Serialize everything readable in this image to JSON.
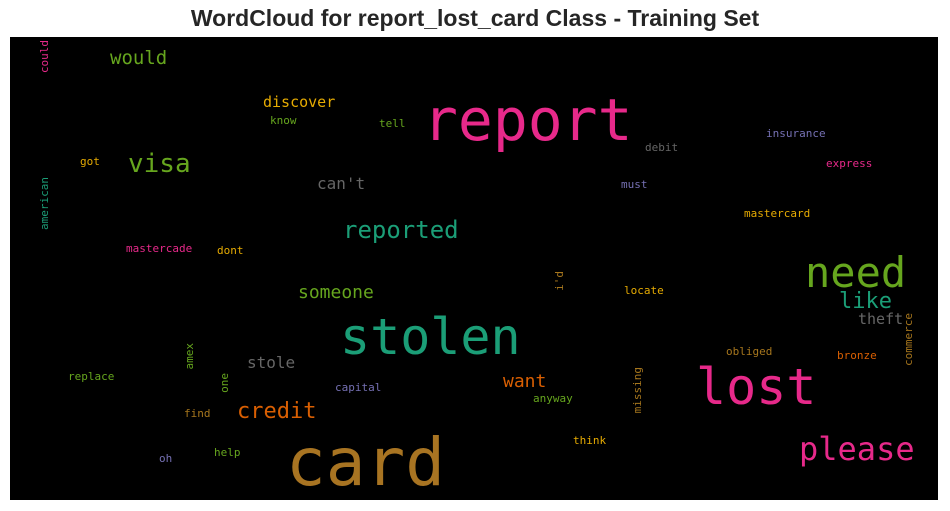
{
  "chart_data": {
    "type": "wordcloud",
    "title": "WordCloud for report_lost_card Class - Training Set",
    "words": [
      {
        "text": "card",
        "color": "#a87422"
      },
      {
        "text": "report",
        "color": "#e7298a"
      },
      {
        "text": "stolen",
        "color": "#1b9e77"
      },
      {
        "text": "lost",
        "color": "#e7298a"
      },
      {
        "text": "need",
        "color": "#66a61e"
      },
      {
        "text": "please",
        "color": "#e7298a"
      },
      {
        "text": "visa",
        "color": "#66a61e"
      },
      {
        "text": "reported",
        "color": "#1b9e77"
      },
      {
        "text": "credit",
        "color": "#d95f02"
      },
      {
        "text": "would",
        "color": "#66a61e"
      },
      {
        "text": "like",
        "color": "#1b9e77"
      },
      {
        "text": "someone",
        "color": "#66a61e"
      },
      {
        "text": "want",
        "color": "#d95f02"
      },
      {
        "text": "discover",
        "color": "#e6ab02"
      },
      {
        "text": "can't",
        "color": "#666666"
      },
      {
        "text": "stole",
        "color": "#666666"
      },
      {
        "text": "theft",
        "color": "#666666"
      },
      {
        "text": "mastercard",
        "color": "#e6ab02"
      },
      {
        "text": "insurance",
        "color": "#7570b3"
      },
      {
        "text": "express",
        "color": "#e7298a"
      },
      {
        "text": "debit",
        "color": "#666666"
      },
      {
        "text": "must",
        "color": "#7570b3"
      },
      {
        "text": "know",
        "color": "#66a61e"
      },
      {
        "text": "tell",
        "color": "#66a61e"
      },
      {
        "text": "got",
        "color": "#e6ab02"
      },
      {
        "text": "mastercade",
        "color": "#e7298a"
      },
      {
        "text": "dont",
        "color": "#e6ab02"
      },
      {
        "text": "locate",
        "color": "#e6ab02"
      },
      {
        "text": "obliged",
        "color": "#a6761d"
      },
      {
        "text": "bronze",
        "color": "#d95f02"
      },
      {
        "text": "replace",
        "color": "#66a61e"
      },
      {
        "text": "capital",
        "color": "#7570b3"
      },
      {
        "text": "anyway",
        "color": "#66a61e"
      },
      {
        "text": "find",
        "color": "#a6761d"
      },
      {
        "text": "think",
        "color": "#e6ab02"
      },
      {
        "text": "help",
        "color": "#66a61e"
      },
      {
        "text": "oh",
        "color": "#7570b3"
      },
      {
        "text": "could",
        "color": "#e7298a"
      },
      {
        "text": "american",
        "color": "#1b9e77"
      },
      {
        "text": "amex",
        "color": "#66a61e"
      },
      {
        "text": "one",
        "color": "#66a61e"
      },
      {
        "text": "missing",
        "color": "#a6761d"
      },
      {
        "text": "i'd",
        "color": "#a6761d"
      },
      {
        "text": "commerce",
        "color": "#a6761d"
      }
    ]
  }
}
